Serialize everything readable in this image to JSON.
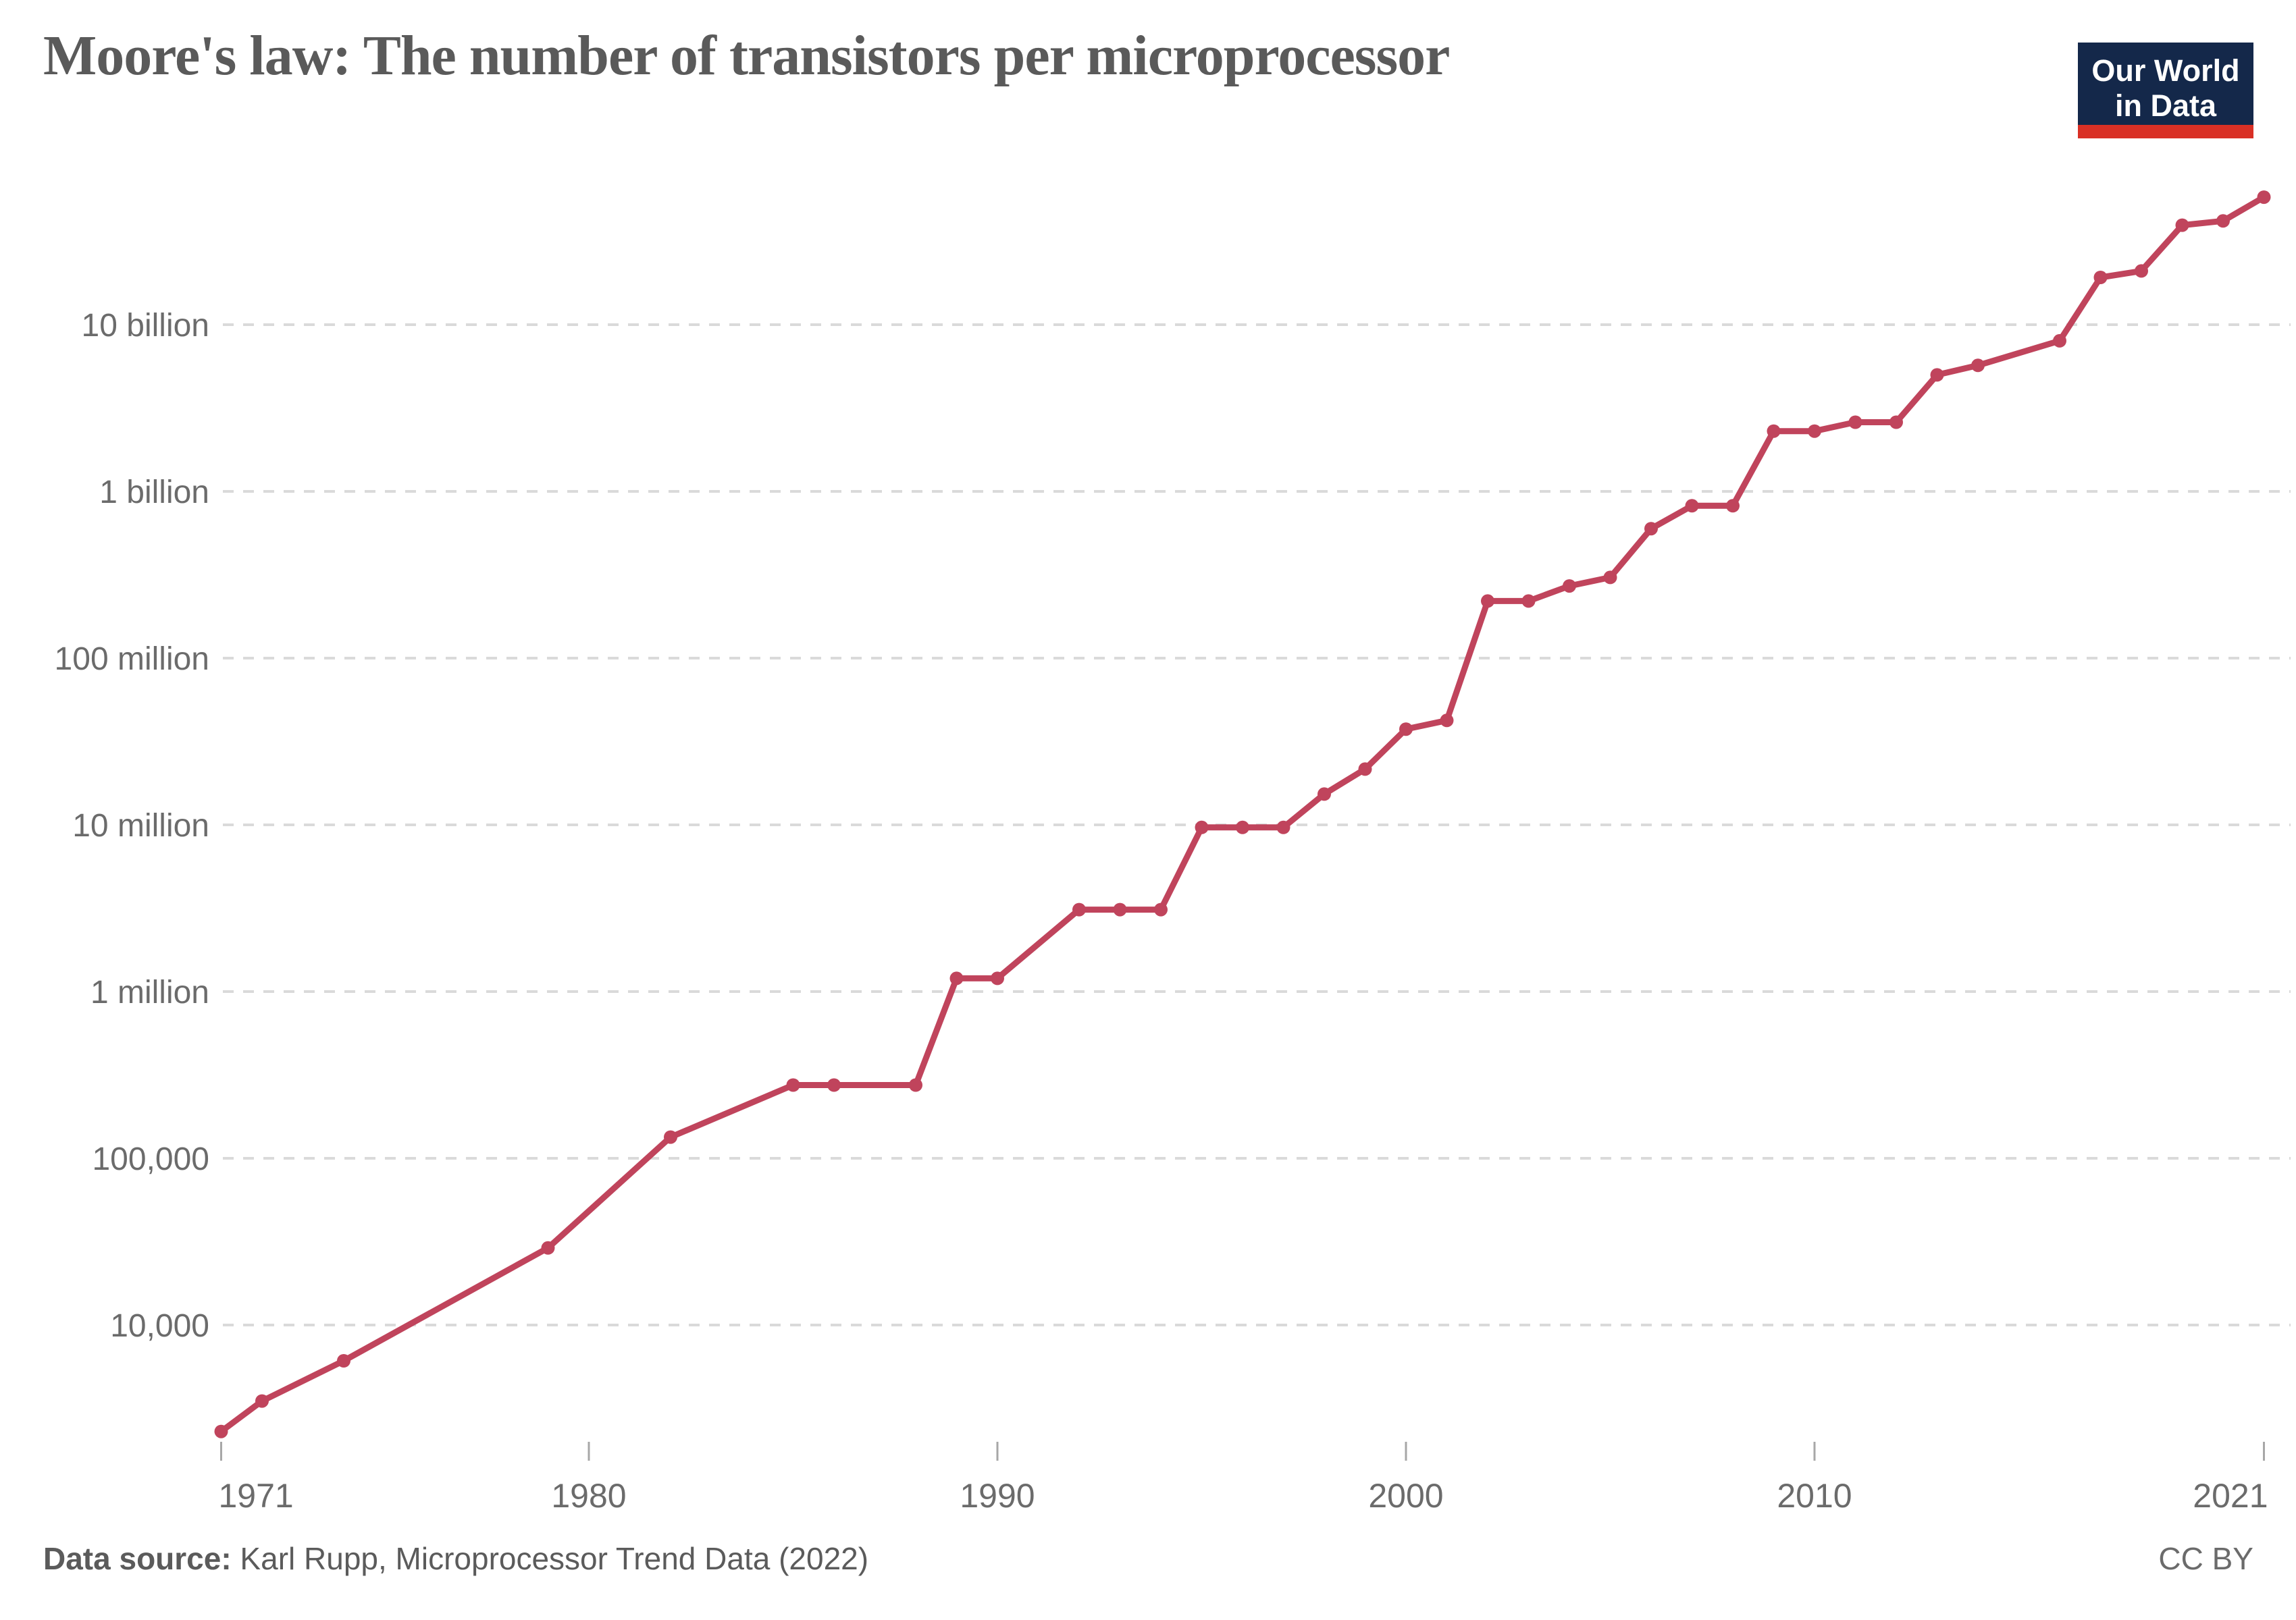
{
  "header": {
    "title": "Moore's law: The number of transistors per microprocessor",
    "logo": {
      "line1": "Our World",
      "line2": "in Data"
    }
  },
  "footer": {
    "source_label": "Data source:",
    "source_text": " Karl Rupp, Microprocessor Trend Data (2022)",
    "license": "CC BY"
  },
  "colors": {
    "line": "#c0445c",
    "grid": "#dadada",
    "tick": "#a7a7a7",
    "axis_text": "#6b6b6b",
    "title_text": "#5a5a5a",
    "footer_text": "#5b5b5b",
    "logo_bg": "#14284a",
    "logo_accent": "#d93025"
  },
  "chart_data": {
    "type": "line",
    "title": "Moore's law: The number of transistors per microprocessor",
    "xlabel": "",
    "ylabel": "Transistors per microprocessor",
    "y_scale": "log",
    "grid": "dashed-horizontal",
    "legend_position": "none",
    "x_ticks": [
      1971,
      1980,
      1990,
      2000,
      2010,
      2021
    ],
    "y_ticks": [
      {
        "value": 10000,
        "label": "10,000"
      },
      {
        "value": 100000,
        "label": "100,000"
      },
      {
        "value": 1000000,
        "label": "1 million"
      },
      {
        "value": 10000000,
        "label": "10 million"
      },
      {
        "value": 100000000,
        "label": "100 million"
      },
      {
        "value": 1000000000,
        "label": "1 billion"
      },
      {
        "value": 10000000000,
        "label": "10 billion"
      }
    ],
    "xlim": [
      1970.5,
      2022
    ],
    "ylim": [
      2000,
      80000000000
    ],
    "series": [
      {
        "name": "Transistors per microprocessor",
        "points": [
          {
            "year": 1971,
            "value": 2300
          },
          {
            "year": 1972,
            "value": 3500
          },
          {
            "year": 1974,
            "value": 6100
          },
          {
            "year": 1979,
            "value": 29000
          },
          {
            "year": 1982,
            "value": 134000
          },
          {
            "year": 1985,
            "value": 275000
          },
          {
            "year": 1986,
            "value": 275000
          },
          {
            "year": 1988,
            "value": 275000
          },
          {
            "year": 1989,
            "value": 1200000
          },
          {
            "year": 1990,
            "value": 1200000
          },
          {
            "year": 1992,
            "value": 3100000
          },
          {
            "year": 1993,
            "value": 3100000
          },
          {
            "year": 1994,
            "value": 3100000
          },
          {
            "year": 1995,
            "value": 9650000
          },
          {
            "year": 1996,
            "value": 9650000
          },
          {
            "year": 1997,
            "value": 9650000
          },
          {
            "year": 1998,
            "value": 15300000
          },
          {
            "year": 1999,
            "value": 21600000
          },
          {
            "year": 2000,
            "value": 37500000
          },
          {
            "year": 2001,
            "value": 42300000
          },
          {
            "year": 2002,
            "value": 220000000
          },
          {
            "year": 2003,
            "value": 220000000
          },
          {
            "year": 2004,
            "value": 271000000
          },
          {
            "year": 2005,
            "value": 305000000
          },
          {
            "year": 2006,
            "value": 598000000
          },
          {
            "year": 2007,
            "value": 820000000
          },
          {
            "year": 2008,
            "value": 820000000
          },
          {
            "year": 2009,
            "value": 2300000000
          },
          {
            "year": 2010,
            "value": 2300000000
          },
          {
            "year": 2011,
            "value": 2600000000
          },
          {
            "year": 2012,
            "value": 2600000000
          },
          {
            "year": 2013,
            "value": 5000000000
          },
          {
            "year": 2014,
            "value": 5700000000
          },
          {
            "year": 2016,
            "value": 8000000000
          },
          {
            "year": 2017,
            "value": 19200000000
          },
          {
            "year": 2018,
            "value": 21000000000
          },
          {
            "year": 2019,
            "value": 39500000000
          },
          {
            "year": 2020,
            "value": 41900000000
          },
          {
            "year": 2021,
            "value": 58200000000
          }
        ]
      }
    ]
  }
}
